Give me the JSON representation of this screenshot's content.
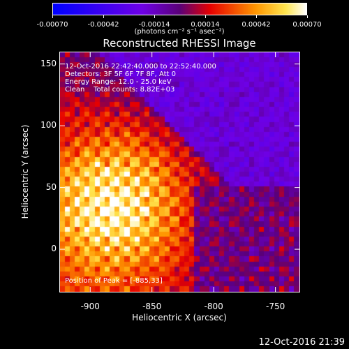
{
  "colorbar": {
    "ticks": [
      "-0.00070",
      "-0.00042",
      "-0.00014",
      "0.00014",
      "0.00042",
      "0.00070"
    ],
    "tick_values": [
      -0.0007,
      -0.00042,
      -0.00014,
      0.00014,
      0.00042,
      0.0007
    ],
    "range": [
      -0.0007,
      0.0007
    ],
    "units": "(photons cm⁻² s⁻¹ asec⁻²)",
    "colors": [
      "#0000ff",
      "#8000ff",
      "#ff0000",
      "#ffa000",
      "#ffffff"
    ]
  },
  "title": "Reconstructed RHESSI Image",
  "info": {
    "time_range": "12-Oct-2016 22:42:40.000 to 22:52:40.000",
    "detectors": "Detectors: 3F 5F 6F 7F 8F, Att 0",
    "energy": "Energy Range: 12.0 - 25.0 keV",
    "algorithm": "Clean",
    "counts": "Total counts: 8.82E+03",
    "peak": "Position of Peak = [-885,33]"
  },
  "axes": {
    "xlabel": "Heliocentric X (arcsec)",
    "ylabel": "Heliocentric Y (arcsec)",
    "xlim": [
      -925,
      -730
    ],
    "ylim": [
      -35,
      160
    ],
    "xticks": [
      "-900",
      "-850",
      "-800",
      "-750"
    ],
    "xtick_values": [
      -900,
      -850,
      -800,
      -750
    ],
    "yticks": [
      "0",
      "50",
      "100",
      "150"
    ],
    "ytick_values": [
      0,
      50,
      100,
      150
    ]
  },
  "footer": "12-Oct-2016 21:39"
}
